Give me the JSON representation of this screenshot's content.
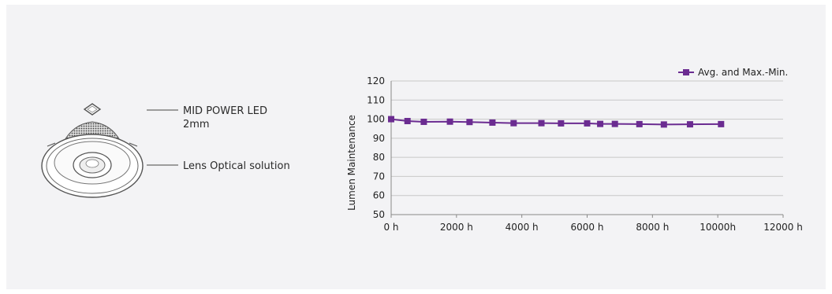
{
  "illustration": {
    "callouts": [
      {
        "line1": "MID POWER LED",
        "line2": "2mm"
      },
      {
        "line1": "Lens Optical solution",
        "line2": ""
      }
    ]
  },
  "chart_data": {
    "type": "line",
    "title": "",
    "xlabel": "",
    "ylabel": "Lumen Maintenance",
    "xlim": [
      0,
      12000
    ],
    "ylim": [
      50,
      120
    ],
    "x_ticks": [
      "0 h",
      "2000 h",
      "4000 h",
      "6000 h",
      "8000 h",
      "10000h",
      "12000 h"
    ],
    "y_ticks": [
      "50",
      "60",
      "70",
      "80",
      "90",
      "100",
      "110",
      "120"
    ],
    "grid": true,
    "legend_position": "top-right",
    "series": [
      {
        "name": "Avg. and Max.-Min.",
        "color": "#6b2c91",
        "points": [
          {
            "x": 0,
            "y": 100
          },
          {
            "x": 500,
            "y": 99
          },
          {
            "x": 1000,
            "y": 98.6
          },
          {
            "x": 1800,
            "y": 98.7
          },
          {
            "x": 2400,
            "y": 98.5
          },
          {
            "x": 3100,
            "y": 98.2
          },
          {
            "x": 3750,
            "y": 97.9
          },
          {
            "x": 4600,
            "y": 97.9
          },
          {
            "x": 5200,
            "y": 97.8
          },
          {
            "x": 6000,
            "y": 97.8
          },
          {
            "x": 6400,
            "y": 97.5
          },
          {
            "x": 6850,
            "y": 97.5
          },
          {
            "x": 7600,
            "y": 97.4
          },
          {
            "x": 8350,
            "y": 97.2
          },
          {
            "x": 9150,
            "y": 97.3
          },
          {
            "x": 10100,
            "y": 97.4
          }
        ]
      }
    ]
  }
}
